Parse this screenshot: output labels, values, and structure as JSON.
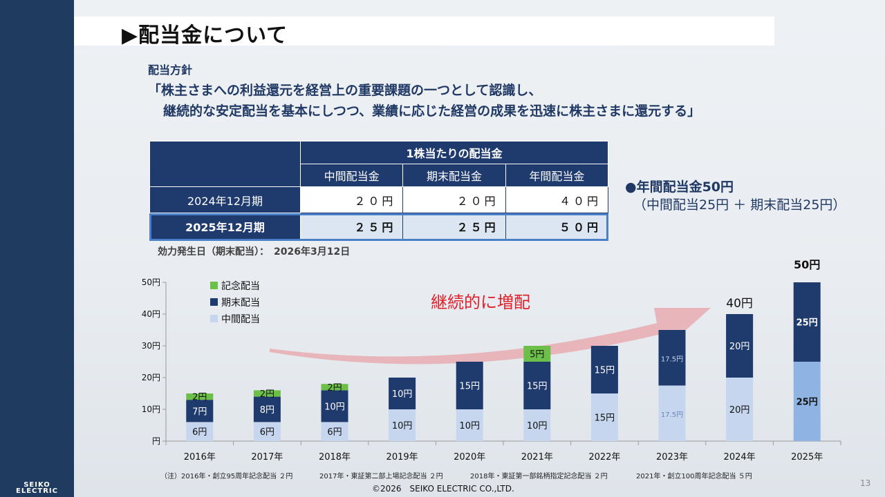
{
  "slide": {
    "title": "▶配当金について",
    "page_number": "13",
    "copyright": "©2026　SEIKO ELECTRIC CO.,LTD.",
    "logo_line1": "SEIKO",
    "logo_line2": "ELECTRIC"
  },
  "policy": {
    "heading": "配当方針",
    "line1": "「株主さまへの利益還元を経営上の重要課題の一つとして認識し、",
    "line2": "継続的な安定配当を基本にしつつ、業績に応じた経営の成果を迅速に株主さまに還元する」"
  },
  "table": {
    "group_header": "1株当たりの配当金",
    "columns": [
      "中間配当金",
      "期末配当金",
      "年間配当金"
    ],
    "rows": [
      {
        "label": "2024年12月期",
        "values": [
          "２０円",
          "２０円",
          "４０円"
        ]
      },
      {
        "label": "2025年12月期",
        "values": [
          "２５円",
          "２５円",
          "５０円"
        ]
      }
    ],
    "effective_date": "効力発生日（期末配当）：　2026年3月12日"
  },
  "annual_note": {
    "main": "●年間配当金50円",
    "sub": "（中間配当25円 ＋ 期末配当25円）"
  },
  "chart_data": {
    "type": "bar",
    "stacked": true,
    "categories": [
      "2016年",
      "2017年",
      "2018年",
      "2019年",
      "2020年",
      "2021年",
      "2022年",
      "2023年",
      "2024年",
      "2025年"
    ],
    "series": [
      {
        "name": "中間配当",
        "values": [
          6,
          6,
          6,
          10,
          10,
          10,
          15,
          17.5,
          20,
          25
        ],
        "labels": [
          "6円",
          "6円",
          "6円",
          "10円",
          "10円",
          "10円",
          "15円",
          "17.5円",
          "20円",
          "25円"
        ]
      },
      {
        "name": "期末配当",
        "values": [
          7,
          8,
          10,
          10,
          15,
          15,
          15,
          17.5,
          20,
          25
        ],
        "labels": [
          "7円",
          "8円",
          "10円",
          "10円",
          "15円",
          "15円",
          "15円",
          "17.5円",
          "20円",
          "25円"
        ]
      },
      {
        "name": "記念配当",
        "values": [
          2,
          2,
          2,
          0,
          0,
          5,
          0,
          0,
          0,
          0
        ],
        "labels": [
          "2円",
          "2円",
          "2円",
          "",
          "",
          "5円",
          "",
          "",
          "",
          ""
        ]
      }
    ],
    "legend": [
      "記念配当",
      "期末配当",
      "中間配当"
    ],
    "y_ticks": [
      "円",
      "10円",
      "20円",
      "30円",
      "40円",
      "50円"
    ],
    "ylim": [
      0,
      50
    ],
    "total_labels": [
      {
        "category": "2024年",
        "text": "40円"
      },
      {
        "category": "2025年",
        "text": "50円"
      }
    ],
    "annotation": "継続的に増配",
    "colors": {
      "interim": "#c5d6ee",
      "interim_2025": "#8fb4e3",
      "year_end": "#1f3b6e",
      "commemorative": "#6cc04a",
      "arrow": "#e7a3a8",
      "annotation": "#e0202a"
    }
  },
  "footnotes": [
    "（注）2016年・創立95周年記念配当 ２円",
    "2017年・東証第二部上場記念配当 ２円",
    "2018年・東証第一部銘柄指定記念配当 ２円",
    "2021年・創立100周年記念配当 ５円"
  ]
}
